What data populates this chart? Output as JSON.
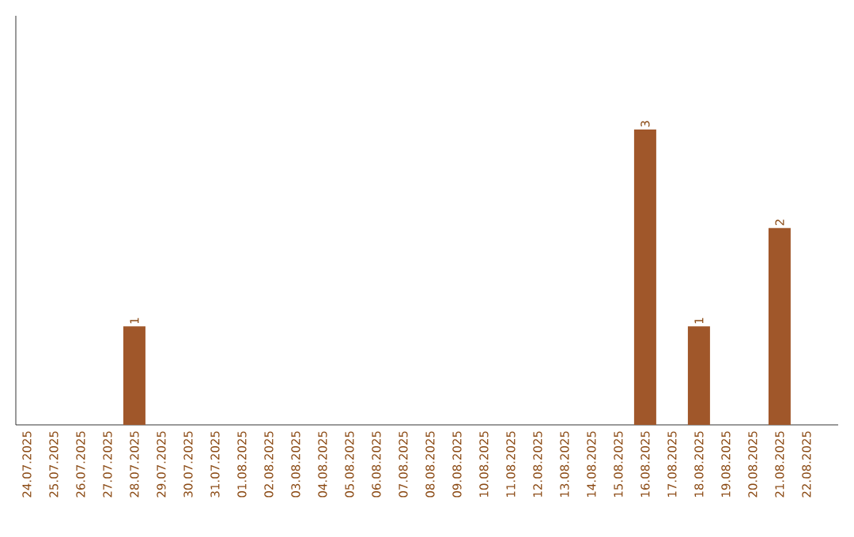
{
  "chart_data": {
    "type": "bar",
    "categories": [
      "24.07.2025",
      "25.07.2025",
      "26.07.2025",
      "27.07.2025",
      "28.07.2025",
      "29.07.2025",
      "30.07.2025",
      "31.07.2025",
      "01.08.2025",
      "02.08.2025",
      "03.08.2025",
      "04.08.2025",
      "05.08.2025",
      "06.08.2025",
      "07.08.2025",
      "08.08.2025",
      "09.08.2025",
      "10.08.2025",
      "11.08.2025",
      "12.08.2025",
      "13.08.2025",
      "14.08.2025",
      "15.08.2025",
      "16.08.2025",
      "17.08.2025",
      "18.08.2025",
      "19.08.2025",
      "20.08.2025",
      "21.08.2025",
      "22.08.2025"
    ],
    "values": [
      0,
      0,
      0,
      0,
      1,
      0,
      0,
      0,
      0,
      0,
      0,
      0,
      0,
      0,
      0,
      0,
      0,
      0,
      0,
      0,
      0,
      0,
      0,
      3,
      0,
      1,
      0,
      0,
      2,
      0
    ],
    "value_labels": [
      null,
      null,
      null,
      null,
      "1",
      null,
      null,
      null,
      null,
      null,
      null,
      null,
      null,
      null,
      null,
      null,
      null,
      null,
      null,
      null,
      null,
      null,
      null,
      "3",
      null,
      "1",
      null,
      null,
      "2",
      null
    ],
    "color": "#a0572a"
  }
}
